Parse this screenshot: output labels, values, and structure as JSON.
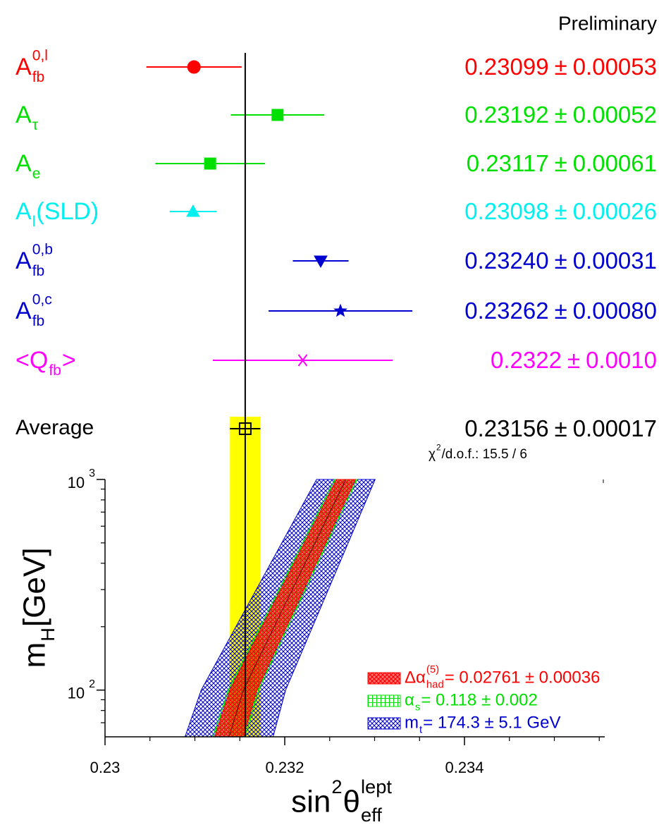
{
  "chart_data": [
    {
      "type": "errorbar",
      "annotation": "Preliminary",
      "plus_minus": "±",
      "labels": [
        [
          {
            "text": "A",
            "sub": "fb",
            "sup": "0,l"
          }
        ],
        [
          {
            "text": "A",
            "sub": "τ"
          }
        ],
        [
          {
            "text": "A",
            "sub": "e"
          }
        ],
        [
          {
            "text": "A",
            "sub": "l"
          },
          {
            "text": "(SLD)"
          }
        ],
        [
          {
            "text": "A",
            "sub": "fb",
            "sup": "0,b"
          }
        ],
        [
          {
            "text": "A",
            "sub": "fb",
            "sup": "0,c"
          }
        ],
        [
          {
            "text": "<Q",
            "sub": "fb"
          },
          {
            "text": ">"
          }
        ]
      ],
      "values": [
        0.23099,
        0.23192,
        0.23117,
        0.23098,
        0.2324,
        0.23262,
        0.2322
      ],
      "value_labels": [
        "0.23099",
        "0.23192",
        "0.23117",
        "0.23098",
        "0.23240",
        "0.23262",
        "0.2322"
      ],
      "errors": [
        0.00053,
        0.00052,
        0.00061,
        0.00026,
        0.00031,
        0.0008,
        0.001
      ],
      "error_labels": [
        "0.00053",
        "0.00052",
        "0.00061",
        "0.00026",
        "0.00031",
        "0.00080",
        "0.0010"
      ],
      "colors": [
        "#ff0000",
        "#00e000",
        "#00e000",
        "#00f0f0",
        "#0000d0",
        "#0000d0",
        "#ff00ff"
      ],
      "markers": [
        "circle",
        "square",
        "square",
        "triangle-up",
        "triangle-down",
        "star",
        "asterisk"
      ],
      "average": {
        "label": [
          {
            "text": "Average"
          }
        ],
        "value": 0.23156,
        "value_label": "0.23156",
        "error": 0.00017,
        "error_label": "0.00017",
        "color": "#000000",
        "band_color": "#ffff00",
        "chi2": [
          {
            "text": "χ",
            "sup": "2"
          },
          {
            "text": "/d.o.f.: 15.5 / 6"
          }
        ]
      }
    },
    {
      "type": "band",
      "x_label": [
        {
          "text": "sin",
          "sup": "2"
        },
        {
          "text": "θ",
          "sub": "eff",
          "sup": "lept"
        }
      ],
      "y_label": [
        {
          "text": "m",
          "sub": "H"
        },
        {
          "text": " [GeV]"
        }
      ],
      "xlim": [
        0.23,
        0.2356
      ],
      "xticks": [
        0.23,
        0.232,
        0.234
      ],
      "xminor_ticks": [
        0.2305,
        0.231,
        0.2315,
        0.2325,
        0.233,
        0.2335,
        0.2345,
        0.235,
        0.2355
      ],
      "ylim": [
        60,
        1000
      ],
      "log_y": true,
      "yticks": [
        {
          "value": 100,
          "label": "10",
          "sup": "2"
        },
        {
          "value": 1000,
          "label": "10",
          "sup": "3"
        }
      ],
      "yminor_ticks": [
        70,
        80,
        90,
        200,
        300,
        400,
        500,
        600,
        700,
        800,
        900
      ],
      "y": [
        60,
        100,
        1000
      ],
      "center": [
        0.23138,
        0.23154,
        0.23268
      ],
      "center_color": "#600000",
      "series": [
        {
          "name": [
            {
              "text": "Δα",
              "sub": "had",
              "sup": "(5)"
            },
            {
              "text": "= 0.02761 ± 0.00036"
            }
          ],
          "color": "#ff0000",
          "halfwidth": [
            0.00016,
            0.00015,
            0.000106
          ]
        },
        {
          "name": [
            {
              "text": "α",
              "sub": "s"
            },
            {
              "text": "= 0.118 ± 0.002"
            }
          ],
          "color": "#00e000",
          "halfwidth": [
            2e-05,
            2e-05,
            2e-05
          ]
        },
        {
          "name": [
            {
              "text": "m",
              "sub": "t"
            },
            {
              "text": "= 174.3 ± 5.1 GeV"
            }
          ],
          "color": "#0000d0",
          "halfwidth": [
            0.00031,
            0.0003,
            0.0002
          ]
        }
      ]
    }
  ]
}
